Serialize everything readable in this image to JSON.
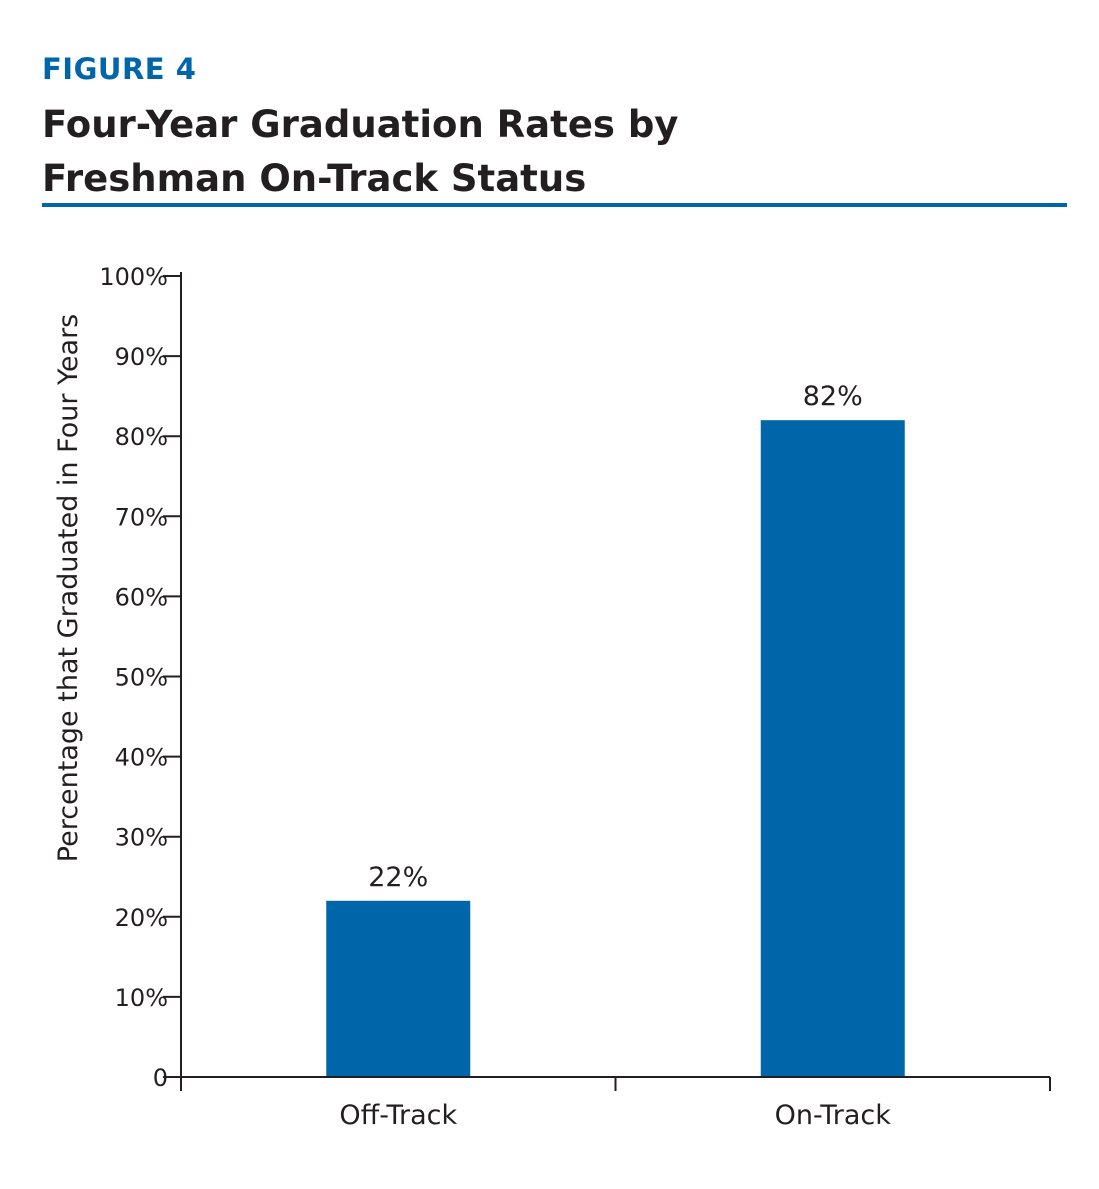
{
  "figure_label": "FIGURE 4",
  "chart_data": {
    "type": "bar",
    "title_lines": [
      "Four-Year Graduation Rates by",
      "Freshman On-Track Status"
    ],
    "xlabel": "",
    "ylabel": "Percentage that Graduated in Four Years",
    "categories": [
      "Off-Track",
      "On-Track"
    ],
    "values": [
      22,
      82
    ],
    "data_labels": [
      "22%",
      "82%"
    ],
    "ylim": [
      0,
      100
    ],
    "yticks": [
      0,
      10,
      20,
      30,
      40,
      50,
      60,
      70,
      80,
      90,
      100
    ],
    "ytick_labels": [
      "0",
      "10%",
      "20%",
      "30%",
      "40%",
      "50%",
      "60%",
      "70%",
      "80%",
      "90%",
      "100%"
    ],
    "grid": false,
    "legend": "none",
    "bar_color": "#0066aa",
    "accent_color": "#0066aa"
  }
}
